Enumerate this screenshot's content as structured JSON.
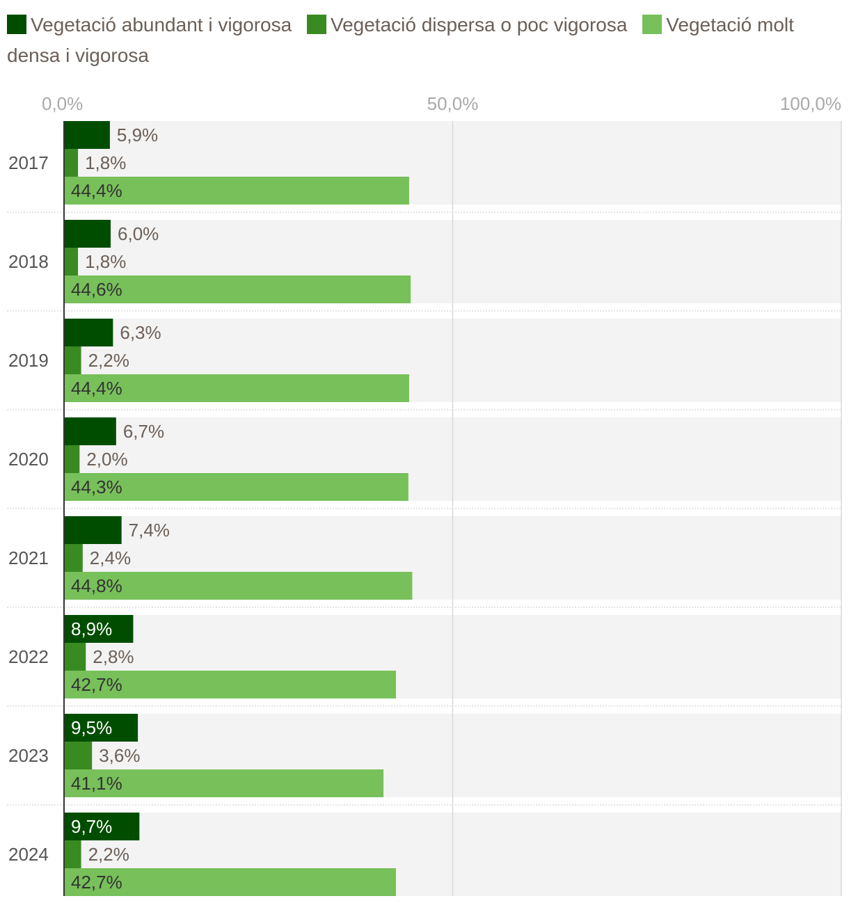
{
  "chart_data": {
    "type": "bar",
    "orientation": "horizontal",
    "categories": [
      "2017",
      "2018",
      "2019",
      "2020",
      "2021",
      "2022",
      "2023",
      "2024"
    ],
    "series": [
      {
        "name": "Vegetació abundant i vigorosa",
        "color": "#004d00",
        "values": [
          5.9,
          6.0,
          6.3,
          6.7,
          7.4,
          8.9,
          9.5,
          9.7
        ],
        "labels": [
          "5,9%",
          "6,0%",
          "6,3%",
          "6,7%",
          "7,4%",
          "8,9%",
          "9,5%",
          "9,7%"
        ]
      },
      {
        "name": "Vegetació dispersa o poc vigorosa",
        "color": "#3a8a22",
        "values": [
          1.8,
          1.8,
          2.2,
          2.0,
          2.4,
          2.8,
          3.6,
          2.2
        ],
        "labels": [
          "1,8%",
          "1,8%",
          "2,2%",
          "2,0%",
          "2,4%",
          "2,8%",
          "3,6%",
          "2,2%"
        ]
      },
      {
        "name": "Vegetació molt densa i vigorosa",
        "color": "#77c05a",
        "values": [
          44.4,
          44.6,
          44.4,
          44.3,
          44.8,
          42.7,
          41.1,
          42.7
        ],
        "labels": [
          "44,4%",
          "44,6%",
          "44,4%",
          "44,3%",
          "44,8%",
          "42,7%",
          "41,1%",
          "42,7%"
        ]
      }
    ],
    "xlim": [
      0,
      100
    ],
    "ticks": [
      "0,0%",
      "50,0%",
      "100,0%"
    ],
    "grid": true,
    "legend_position": "top"
  }
}
